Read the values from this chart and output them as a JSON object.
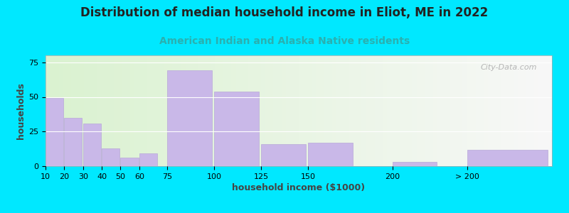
{
  "title": "Distribution of median household income in Eliot, ME in 2022",
  "subtitle": "American Indian and Alaska Native residents",
  "xlabel": "household income ($1000)",
  "ylabel": "households",
  "bar_color": "#c9b8e8",
  "bar_edge_color": "#b8a8d8",
  "background_outer": "#00e8ff",
  "background_inner_left": "#daf2d0",
  "background_inner_right": "#f8f8f8",
  "watermark": "City-Data.com",
  "ylim": [
    0,
    80
  ],
  "yticks": [
    0,
    25,
    50,
    75
  ],
  "categories": [
    "10",
    "20",
    "30",
    "40",
    "50",
    "60",
    "75",
    "100",
    "125",
    "150",
    "200",
    "> 200"
  ],
  "values": [
    49,
    35,
    31,
    13,
    6,
    9,
    69,
    54,
    16,
    17,
    3,
    12
  ],
  "bar_positions": [
    0,
    10,
    20,
    30,
    40,
    50,
    65,
    90,
    115,
    140,
    185,
    225
  ],
  "bar_widths": [
    10,
    10,
    10,
    10,
    10,
    10,
    25,
    25,
    25,
    25,
    25,
    45
  ],
  "title_fontsize": 12,
  "subtitle_fontsize": 10,
  "subtitle_color": "#2ab0b0",
  "axis_label_fontsize": 9,
  "tick_fontsize": 8,
  "title_color": "#222222"
}
